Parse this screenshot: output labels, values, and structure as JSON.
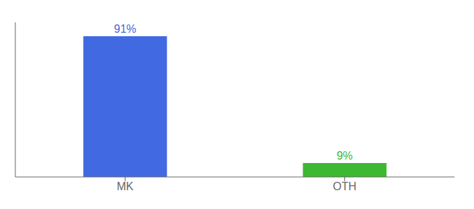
{
  "chart_data": {
    "type": "bar",
    "categories": [
      "MK",
      "OTH"
    ],
    "values": [
      91,
      9
    ],
    "value_labels": [
      "91%",
      "9%"
    ],
    "colors": [
      "#4169e1",
      "#3cb832"
    ],
    "ylim": [
      0,
      100
    ],
    "data_labels": true,
    "tick_labels": "x",
    "grid": false
  }
}
